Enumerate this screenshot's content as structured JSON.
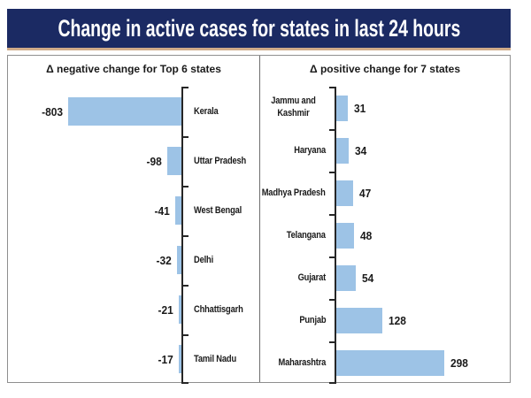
{
  "title": "Change in active cases for states in last 24 hours",
  "colors": {
    "title_bg": "#1b2a63",
    "title_text": "#ffffff",
    "accent_line": "#d0ab8a",
    "bar_fill": "#9dc3e6",
    "axis": "#262626",
    "text": "#1a1a1a",
    "panel_border": "#8f8f8f",
    "panel_divider": "#6f6f6f",
    "background": "#ffffff"
  },
  "chart_data": [
    {
      "type": "bar",
      "orientation": "horizontal",
      "direction": "left",
      "title": "Δ negative change for Top 6 states",
      "categories": [
        "Kerala",
        "Uttar Pradesh",
        "West Bengal",
        "Delhi",
        "Chhattisgarh",
        "Tamil Nadu"
      ],
      "values": [
        -803,
        -98,
        -41,
        -32,
        -21,
        -17
      ],
      "value_labels": [
        "-803",
        "-98",
        "-41",
        "-32",
        "-21",
        "-17"
      ],
      "xlim": [
        -803,
        0
      ],
      "grid": false,
      "legend": false,
      "value_label_position": "outside-end",
      "category_label_position": "right-of-axis"
    },
    {
      "type": "bar",
      "orientation": "horizontal",
      "direction": "right",
      "title": "Δ positive change for 7 states",
      "categories": [
        "Jammu and Kashmir",
        "Haryana",
        "Madhya Pradesh",
        "Telangana",
        "Gujarat",
        "Punjab",
        "Maharashtra"
      ],
      "values": [
        31,
        34,
        47,
        48,
        54,
        128,
        298
      ],
      "value_labels": [
        "31",
        "34",
        "47",
        "48",
        "54",
        "128",
        "298"
      ],
      "xlim": [
        0,
        298
      ],
      "grid": false,
      "legend": false,
      "value_label_position": "outside-end",
      "category_label_position": "left-of-axis"
    }
  ]
}
